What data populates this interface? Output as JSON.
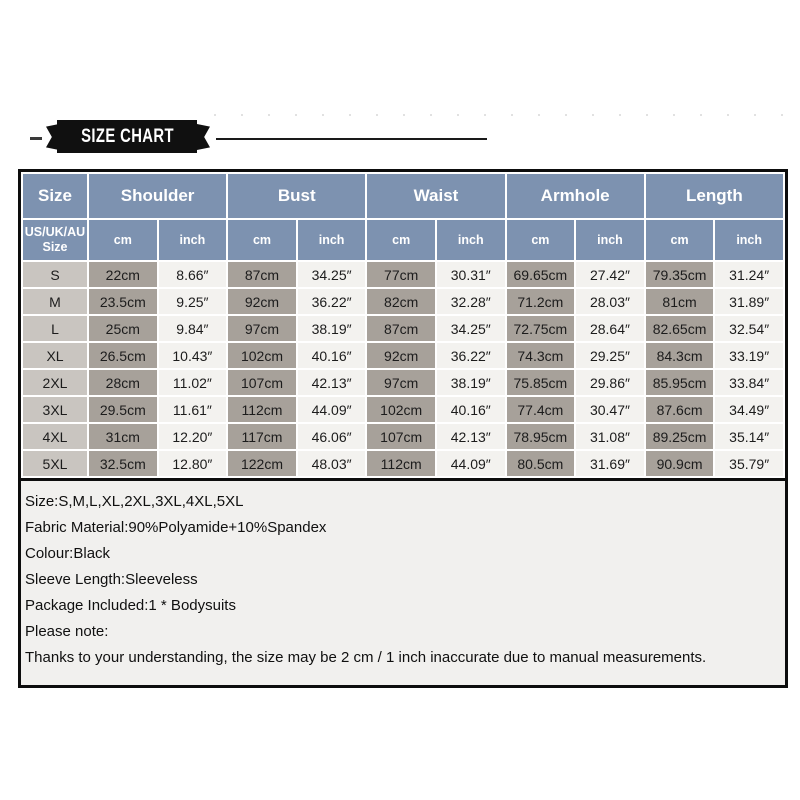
{
  "banner": {
    "title": "SIZE CHART"
  },
  "table": {
    "col_groups": [
      {
        "label": "Size"
      },
      {
        "label": "Shoulder"
      },
      {
        "label": "Bust"
      },
      {
        "label": "Waist"
      },
      {
        "label": "Armhole"
      },
      {
        "label": "Length"
      }
    ],
    "sub_header": {
      "size": "US/UK/AU Size",
      "unit_cm": "cm",
      "unit_inch": "inch"
    },
    "rows": [
      {
        "size": "S",
        "cells": [
          "22cm",
          "8.66″",
          "87cm",
          "34.25″",
          "77cm",
          "30.31″",
          "69.65cm",
          "27.42″",
          "79.35cm",
          "31.24″"
        ]
      },
      {
        "size": "M",
        "cells": [
          "23.5cm",
          "9.25″",
          "92cm",
          "36.22″",
          "82cm",
          "32.28″",
          "71.2cm",
          "28.03″",
          "81cm",
          "31.89″"
        ]
      },
      {
        "size": "L",
        "cells": [
          "25cm",
          "9.84″",
          "97cm",
          "38.19″",
          "87cm",
          "34.25″",
          "72.75cm",
          "28.64″",
          "82.65cm",
          "32.54″"
        ]
      },
      {
        "size": "XL",
        "cells": [
          "26.5cm",
          "10.43″",
          "102cm",
          "40.16″",
          "92cm",
          "36.22″",
          "74.3cm",
          "29.25″",
          "84.3cm",
          "33.19″"
        ]
      },
      {
        "size": "2XL",
        "cells": [
          "28cm",
          "11.02″",
          "107cm",
          "42.13″",
          "97cm",
          "38.19″",
          "75.85cm",
          "29.86″",
          "85.95cm",
          "33.84″"
        ]
      },
      {
        "size": "3XL",
        "cells": [
          "29.5cm",
          "11.61″",
          "112cm",
          "44.09″",
          "102cm",
          "40.16″",
          "77.4cm",
          "30.47″",
          "87.6cm",
          "34.49″"
        ]
      },
      {
        "size": "4XL",
        "cells": [
          "31cm",
          "12.20″",
          "117cm",
          "46.06″",
          "107cm",
          "42.13″",
          "78.95cm",
          "31.08″",
          "89.25cm",
          "35.14″"
        ]
      },
      {
        "size": "5XL",
        "cells": [
          "32.5cm",
          "12.80″",
          "122cm",
          "48.03″",
          "112cm",
          "44.09″",
          "80.5cm",
          "31.69″",
          "90.9cm",
          "35.79″"
        ]
      }
    ]
  },
  "notes": {
    "lines": [
      "Size:S,M,L,XL,2XL,3XL,4XL,5XL",
      "Fabric Material:90%Polyamide+10%Spandex",
      "Colour:Black",
      "Sleeve Length:Sleeveless",
      "Package Included:1 * Bodysuits",
      "Please note:",
      "Thanks to your understanding, the size may be 2 cm / 1 inch inaccurate due to manual measurements."
    ]
  },
  "colors": {
    "header_blue": "#7d92b0",
    "header_text": "#ffffff",
    "size_col_bg": "#c9c5c0",
    "cm_col_bg": "#a7a19a",
    "inch_col_bg": "#f3f2ef",
    "outer_border": "#0d0d0d",
    "banner_bg": "#101010",
    "banner_text": "#ffffff",
    "notes_bg": "#f1f0ee"
  },
  "chart_data": {
    "type": "table",
    "title": "SIZE CHART",
    "column_groups": [
      "Size",
      "Shoulder",
      "Bust",
      "Waist",
      "Armhole",
      "Length"
    ],
    "columns": [
      "US/UK/AU Size",
      "Shoulder cm",
      "Shoulder inch",
      "Bust cm",
      "Bust inch",
      "Waist cm",
      "Waist inch",
      "Armhole cm",
      "Armhole inch",
      "Length cm",
      "Length inch"
    ],
    "rows": [
      [
        "S",
        "22cm",
        "8.66″",
        "87cm",
        "34.25″",
        "77cm",
        "30.31″",
        "69.65cm",
        "27.42″",
        "79.35cm",
        "31.24″"
      ],
      [
        "M",
        "23.5cm",
        "9.25″",
        "92cm",
        "36.22″",
        "82cm",
        "32.28″",
        "71.2cm",
        "28.03″",
        "81cm",
        "31.89″"
      ],
      [
        "L",
        "25cm",
        "9.84″",
        "97cm",
        "38.19″",
        "87cm",
        "34.25″",
        "72.75cm",
        "28.64″",
        "82.65cm",
        "32.54″"
      ],
      [
        "XL",
        "26.5cm",
        "10.43″",
        "102cm",
        "40.16″",
        "92cm",
        "36.22″",
        "74.3cm",
        "29.25″",
        "84.3cm",
        "33.19″"
      ],
      [
        "2XL",
        "28cm",
        "11.02″",
        "107cm",
        "42.13″",
        "97cm",
        "38.19″",
        "75.85cm",
        "29.86″",
        "85.95cm",
        "33.84″"
      ],
      [
        "3XL",
        "29.5cm",
        "11.61″",
        "112cm",
        "44.09″",
        "102cm",
        "40.16″",
        "77.4cm",
        "30.47″",
        "87.6cm",
        "34.49″"
      ],
      [
        "4XL",
        "31cm",
        "12.20″",
        "117cm",
        "46.06″",
        "107cm",
        "42.13″",
        "78.95cm",
        "31.08″",
        "89.25cm",
        "35.14″"
      ],
      [
        "5XL",
        "32.5cm",
        "12.80″",
        "122cm",
        "48.03″",
        "112cm",
        "44.09″",
        "80.5cm",
        "31.69″",
        "90.9cm",
        "35.79″"
      ]
    ]
  }
}
